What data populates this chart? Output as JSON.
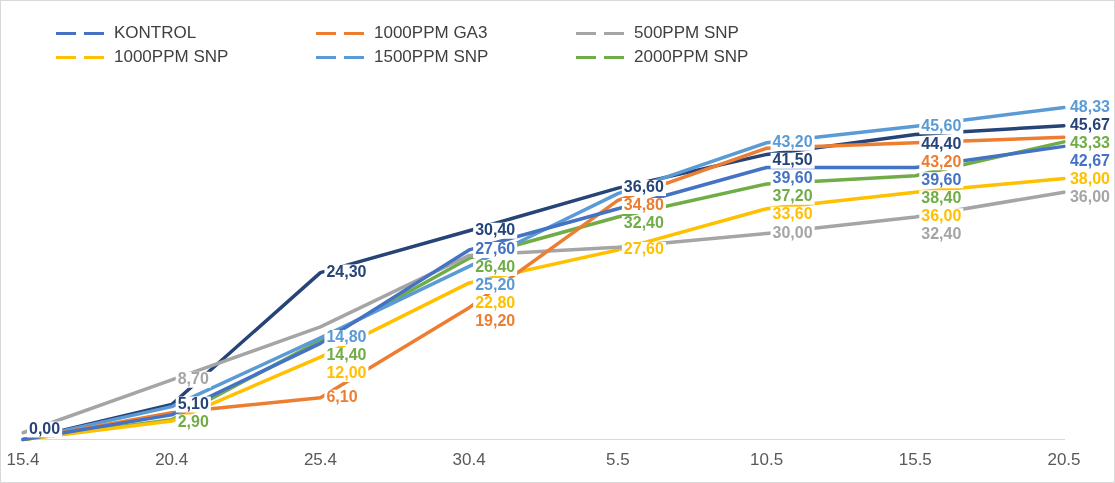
{
  "chart_data": {
    "type": "line",
    "categories": [
      "15.4",
      "20.4",
      "25.4",
      "30.4",
      "5.5",
      "10.5",
      "15.5",
      "20.5"
    ],
    "series": [
      {
        "name": "KONTROL",
        "color": "#4472c4",
        "values": [
          0,
          3.6,
          14.0,
          27.6,
          33.6,
          39.6,
          39.6,
          42.67
        ],
        "value_labels": [
          null,
          null,
          null,
          "27,60",
          null,
          "39,60",
          "39,60",
          "42,67"
        ]
      },
      {
        "name": "1000PPM GA3",
        "color": "#ed7d31",
        "values": [
          0,
          3.9,
          6.1,
          19.2,
          34.8,
          42.4,
          43.2,
          44.0
        ],
        "value_labels": [
          null,
          null,
          "6,10",
          "19,20",
          "34,80",
          null,
          "43,20",
          null
        ]
      },
      {
        "name": "500PPM SNP",
        "color": "#a5a5a5",
        "values": [
          1.0,
          8.7,
          16.4,
          26.8,
          28.0,
          30.0,
          32.4,
          36.0
        ],
        "value_labels": [
          null,
          "8,70",
          null,
          null,
          null,
          "30,00",
          "32,40",
          "36,00"
        ]
      },
      {
        "name": "1000PPM SNP",
        "color": "#ffc000",
        "values": [
          0,
          2.7,
          12.0,
          22.8,
          27.6,
          33.6,
          36.0,
          38.0
        ],
        "value_labels": [
          null,
          null,
          "12,00",
          "22,80",
          "27,60",
          "33,60",
          "36,00",
          "38,00"
        ]
      },
      {
        "name": "1500PPM SNP",
        "color": "#5b9bd5",
        "values": [
          0,
          4.8,
          14.8,
          25.2,
          35.8,
          43.2,
          45.6,
          48.33
        ],
        "value_labels": [
          null,
          null,
          "14,80",
          "25,20",
          null,
          "43,20",
          "45,60",
          "48,33"
        ]
      },
      {
        "name": "2000PPM SNP",
        "color": "#70ad47",
        "values": [
          0,
          2.9,
          14.4,
          26.4,
          32.4,
          37.2,
          38.4,
          43.33
        ],
        "value_labels": [
          null,
          "2,90",
          "14,40",
          "26,40",
          "32,40",
          "37,20",
          "38,40",
          "43,33"
        ]
      },
      {
        "color": "#264478",
        "values": [
          0,
          5.1,
          24.3,
          30.4,
          36.6,
          41.5,
          44.4,
          45.67
        ],
        "value_labels": [
          "0,00",
          "5,10",
          "24,30",
          "30,40",
          "36,60",
          "41,50",
          "44,40",
          "45,67"
        ]
      }
    ],
    "legend": "top left",
    "marker": "none",
    "line_style": "solid"
  }
}
